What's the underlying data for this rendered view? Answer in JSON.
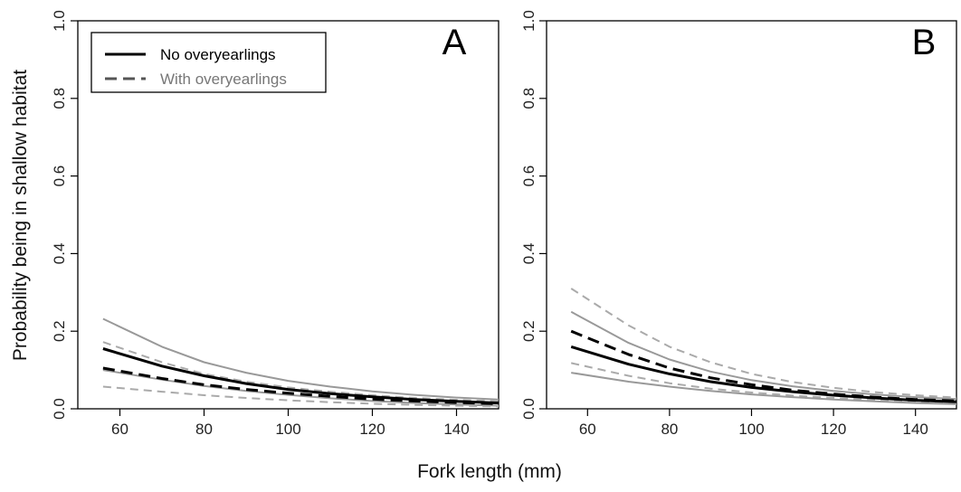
{
  "ylabel": "Probability being in shallow habitat",
  "xlabel": "Fork length (mm)",
  "legend": {
    "items": [
      {
        "label": "No overyearlings",
        "style": "solid",
        "color": "#000000"
      },
      {
        "label": "With overyearlings",
        "style": "dashed",
        "color": "#555555"
      }
    ],
    "text_colors": [
      "#000000",
      "#777777"
    ]
  },
  "colors": {
    "estimate": "#000000",
    "ci_solid": "#999999",
    "ci_dashed": "#aaaaaa"
  },
  "chart_data": [
    {
      "type": "line",
      "panel": "A",
      "xlim": [
        50,
        150
      ],
      "ylim": [
        0,
        1
      ],
      "x_ticks": [
        60,
        80,
        100,
        120,
        140
      ],
      "y_ticks": [
        0.0,
        0.2,
        0.4,
        0.6,
        0.8,
        1.0
      ],
      "y_tick_labels": [
        "0.0",
        "0.2",
        "0.4",
        "0.6",
        "0.8",
        "1.0"
      ],
      "x": [
        56,
        70,
        80,
        90,
        100,
        110,
        120,
        130,
        140,
        150
      ],
      "series": [
        {
          "group": "No overyearlings",
          "role": "estimate",
          "style": "solid",
          "values": [
            0.155,
            0.11,
            0.085,
            0.065,
            0.05,
            0.039,
            0.031,
            0.024,
            0.019,
            0.015
          ]
        },
        {
          "group": "No overyearlings",
          "role": "upper",
          "style": "solid",
          "values": [
            0.232,
            0.16,
            0.12,
            0.093,
            0.072,
            0.057,
            0.045,
            0.036,
            0.029,
            0.024
          ]
        },
        {
          "group": "No overyearlings",
          "role": "lower",
          "style": "solid",
          "values": [
            0.1,
            0.075,
            0.059,
            0.046,
            0.036,
            0.027,
            0.02,
            0.015,
            0.011,
            0.008
          ]
        },
        {
          "group": "With overyearlings",
          "role": "estimate",
          "style": "dashed",
          "values": [
            0.105,
            0.078,
            0.062,
            0.05,
            0.04,
            0.032,
            0.025,
            0.02,
            0.016,
            0.013
          ]
        },
        {
          "group": "With overyearlings",
          "role": "upper",
          "style": "dashed",
          "values": [
            0.172,
            0.12,
            0.09,
            0.07,
            0.055,
            0.044,
            0.035,
            0.028,
            0.023,
            0.019
          ]
        },
        {
          "group": "With overyearlings",
          "role": "lower",
          "style": "dashed",
          "values": [
            0.057,
            0.044,
            0.035,
            0.028,
            0.022,
            0.017,
            0.013,
            0.01,
            0.008,
            0.006
          ]
        }
      ]
    },
    {
      "type": "line",
      "panel": "B",
      "xlim": [
        50,
        150
      ],
      "ylim": [
        0,
        1
      ],
      "x_ticks": [
        60,
        80,
        100,
        120,
        140
      ],
      "y_ticks": [
        0.0,
        0.2,
        0.4,
        0.6,
        0.8,
        1.0
      ],
      "y_tick_labels": [
        "0.0",
        "0.2",
        "0.4",
        "0.6",
        "0.8",
        "1.0"
      ],
      "x": [
        56,
        70,
        80,
        90,
        100,
        110,
        120,
        130,
        140,
        150
      ],
      "series": [
        {
          "group": "No overyearlings",
          "role": "estimate",
          "style": "solid",
          "values": [
            0.16,
            0.115,
            0.09,
            0.07,
            0.055,
            0.044,
            0.035,
            0.028,
            0.022,
            0.018
          ]
        },
        {
          "group": "No overyearlings",
          "role": "upper",
          "style": "solid",
          "values": [
            0.25,
            0.17,
            0.127,
            0.096,
            0.074,
            0.058,
            0.046,
            0.037,
            0.03,
            0.025
          ]
        },
        {
          "group": "No overyearlings",
          "role": "lower",
          "style": "solid",
          "values": [
            0.093,
            0.07,
            0.057,
            0.046,
            0.037,
            0.03,
            0.024,
            0.019,
            0.015,
            0.012
          ]
        },
        {
          "group": "With overyearlings",
          "role": "estimate",
          "style": "dashed",
          "values": [
            0.2,
            0.14,
            0.105,
            0.08,
            0.062,
            0.048,
            0.038,
            0.03,
            0.024,
            0.02
          ]
        },
        {
          "group": "With overyearlings",
          "role": "upper",
          "style": "dashed",
          "values": [
            0.31,
            0.215,
            0.16,
            0.12,
            0.09,
            0.069,
            0.054,
            0.043,
            0.035,
            0.029
          ]
        },
        {
          "group": "With overyearlings",
          "role": "lower",
          "style": "dashed",
          "values": [
            0.118,
            0.085,
            0.066,
            0.052,
            0.042,
            0.034,
            0.028,
            0.023,
            0.019,
            0.016
          ]
        }
      ]
    }
  ]
}
